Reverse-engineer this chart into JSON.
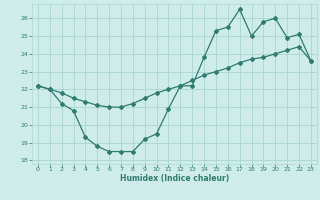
{
  "xlabel": "Humidex (Indice chaleur)",
  "ylabel": "",
  "background_color": "#ceecea",
  "grid_color": "#aed8d4",
  "line_color": "#2e7d6e",
  "xlim": [
    -0.5,
    23.5
  ],
  "ylim": [
    17.8,
    26.8
  ],
  "xticks": [
    0,
    1,
    2,
    3,
    4,
    5,
    6,
    7,
    8,
    9,
    10,
    11,
    12,
    13,
    14,
    15,
    16,
    17,
    18,
    19,
    20,
    21,
    22,
    23
  ],
  "yticks": [
    18,
    19,
    20,
    21,
    22,
    23,
    24,
    25,
    26
  ],
  "line1_x": [
    0,
    1,
    2,
    3,
    4,
    5,
    6,
    7,
    8,
    9,
    10,
    11,
    12,
    13,
    14,
    15,
    16,
    17,
    18,
    19,
    20,
    21,
    22,
    23
  ],
  "line1_y": [
    22.2,
    22.0,
    21.8,
    21.5,
    21.3,
    21.1,
    21.0,
    21.0,
    21.2,
    21.5,
    21.8,
    22.0,
    22.2,
    22.5,
    22.8,
    23.0,
    23.2,
    23.5,
    23.7,
    23.8,
    24.0,
    24.2,
    24.4,
    23.6
  ],
  "line2_x": [
    0,
    1,
    2,
    3,
    4,
    5,
    6,
    7,
    8,
    9,
    10,
    11,
    12,
    13,
    14,
    15,
    16,
    17,
    18,
    19,
    20,
    21,
    22,
    23
  ],
  "line2_y": [
    22.2,
    22.0,
    21.2,
    20.8,
    19.3,
    18.8,
    18.5,
    18.5,
    18.5,
    19.2,
    19.5,
    20.9,
    22.2,
    22.2,
    23.8,
    25.3,
    25.5,
    26.5,
    25.0,
    25.8,
    26.0,
    24.9,
    25.1,
    23.6
  ]
}
